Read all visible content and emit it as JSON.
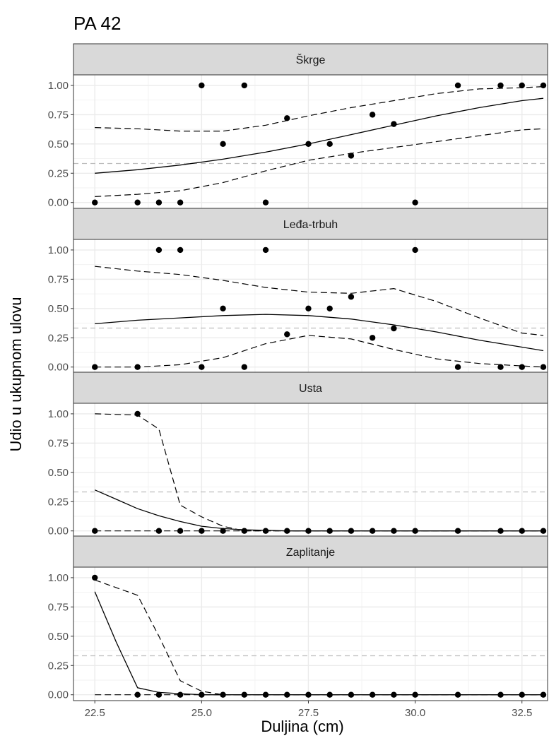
{
  "chart_data": {
    "type": "scatter",
    "title": "PA 42",
    "xlabel": "Duljina (cm)",
    "ylabel": "Udio u ukupnom ulovu",
    "xlim": [
      22.0,
      33.1
    ],
    "ylim": [
      -0.05,
      1.09
    ],
    "x_ticks": [
      22.5,
      25.0,
      27.5,
      30.0,
      32.5
    ],
    "x_tick_labels": [
      "22.5",
      "25.0",
      "27.5",
      "30.0",
      "32.5"
    ],
    "y_ticks": [
      0,
      0.25,
      0.5,
      0.75,
      1.0
    ],
    "y_tick_labels": [
      "0.00",
      "0.25",
      "0.50",
      "0.75",
      "1.00"
    ],
    "reference_line": 0.333,
    "grid": true,
    "panels": [
      {
        "name": "Škrge",
        "points": [
          [
            22.5,
            0
          ],
          [
            23.5,
            0
          ],
          [
            24,
            0
          ],
          [
            24.5,
            0
          ],
          [
            25,
            1
          ],
          [
            25.5,
            0.5
          ],
          [
            26,
            1
          ],
          [
            26.5,
            0
          ],
          [
            27,
            0.72
          ],
          [
            27.5,
            0.5
          ],
          [
            28,
            0.5
          ],
          [
            28.5,
            0.4
          ],
          [
            29,
            0.75
          ],
          [
            29.5,
            0.67
          ],
          [
            30,
            0
          ],
          [
            31,
            1
          ],
          [
            32,
            1
          ],
          [
            32.5,
            1
          ],
          [
            33,
            1
          ]
        ],
        "fit": [
          [
            22.5,
            0.25
          ],
          [
            23.5,
            0.28
          ],
          [
            24.5,
            0.32
          ],
          [
            25.5,
            0.37
          ],
          [
            26.5,
            0.43
          ],
          [
            27.5,
            0.5
          ],
          [
            28.5,
            0.58
          ],
          [
            29.5,
            0.66
          ],
          [
            30.5,
            0.74
          ],
          [
            31.5,
            0.81
          ],
          [
            32.5,
            0.87
          ],
          [
            33,
            0.89
          ]
        ],
        "lower": [
          [
            22.5,
            0.05
          ],
          [
            23.5,
            0.07
          ],
          [
            24.5,
            0.1
          ],
          [
            25.5,
            0.17
          ],
          [
            26.5,
            0.27
          ],
          [
            27.5,
            0.36
          ],
          [
            28.5,
            0.42
          ],
          [
            29.5,
            0.47
          ],
          [
            30.5,
            0.52
          ],
          [
            31.5,
            0.57
          ],
          [
            32.5,
            0.62
          ],
          [
            33,
            0.63
          ]
        ],
        "upper": [
          [
            22.5,
            0.64
          ],
          [
            23.5,
            0.63
          ],
          [
            24.5,
            0.61
          ],
          [
            25.5,
            0.61
          ],
          [
            26.5,
            0.66
          ],
          [
            27.5,
            0.74
          ],
          [
            28.5,
            0.81
          ],
          [
            29.5,
            0.87
          ],
          [
            30.5,
            0.93
          ],
          [
            31.5,
            0.97
          ],
          [
            32.5,
            0.98
          ],
          [
            33,
            0.99
          ]
        ]
      },
      {
        "name": "Leđa-trbuh",
        "points": [
          [
            22.5,
            0
          ],
          [
            23.5,
            0
          ],
          [
            24,
            1
          ],
          [
            24.5,
            1
          ],
          [
            25,
            0
          ],
          [
            25.5,
            0.5
          ],
          [
            26,
            0
          ],
          [
            26.5,
            1
          ],
          [
            27,
            0.28
          ],
          [
            27.5,
            0.5
          ],
          [
            28,
            0.5
          ],
          [
            28.5,
            0.6
          ],
          [
            29,
            0.25
          ],
          [
            29.5,
            0.33
          ],
          [
            30,
            1
          ],
          [
            31,
            0
          ],
          [
            32,
            0
          ],
          [
            32.5,
            0
          ],
          [
            33,
            0
          ]
        ],
        "fit": [
          [
            22.5,
            0.37
          ],
          [
            23.5,
            0.4
          ],
          [
            24.5,
            0.42
          ],
          [
            25.5,
            0.44
          ],
          [
            26.5,
            0.45
          ],
          [
            27.5,
            0.44
          ],
          [
            28.5,
            0.41
          ],
          [
            29.5,
            0.36
          ],
          [
            30.5,
            0.3
          ],
          [
            31.5,
            0.23
          ],
          [
            32.5,
            0.17
          ],
          [
            33,
            0.14
          ]
        ],
        "lower": [
          [
            22.5,
            0
          ],
          [
            23.5,
            0
          ],
          [
            24.5,
            0.02
          ],
          [
            25.5,
            0.08
          ],
          [
            26.5,
            0.2
          ],
          [
            27.5,
            0.27
          ],
          [
            28.5,
            0.24
          ],
          [
            29.5,
            0.15
          ],
          [
            30.5,
            0.07
          ],
          [
            31.5,
            0.03
          ],
          [
            32.5,
            0.01
          ],
          [
            33,
            0
          ]
        ],
        "upper": [
          [
            22.5,
            0.86
          ],
          [
            23.5,
            0.82
          ],
          [
            24.5,
            0.79
          ],
          [
            25.5,
            0.74
          ],
          [
            26.5,
            0.68
          ],
          [
            27.5,
            0.64
          ],
          [
            28.5,
            0.63
          ],
          [
            29.5,
            0.67
          ],
          [
            30.5,
            0.56
          ],
          [
            31.5,
            0.42
          ],
          [
            32.5,
            0.29
          ],
          [
            33,
            0.27
          ]
        ]
      },
      {
        "name": "Usta",
        "points": [
          [
            22.5,
            0
          ],
          [
            23.5,
            1
          ],
          [
            24,
            0
          ],
          [
            24.5,
            0
          ],
          [
            25,
            0
          ],
          [
            25.5,
            0
          ],
          [
            26,
            0
          ],
          [
            26.5,
            0
          ],
          [
            27,
            0
          ],
          [
            27.5,
            0
          ],
          [
            28,
            0
          ],
          [
            28.5,
            0
          ],
          [
            29,
            0
          ],
          [
            29.5,
            0
          ],
          [
            30,
            0
          ],
          [
            31,
            0
          ],
          [
            32,
            0
          ],
          [
            32.5,
            0
          ],
          [
            33,
            0
          ]
        ],
        "fit": [
          [
            22.5,
            0.35
          ],
          [
            23,
            0.27
          ],
          [
            23.5,
            0.19
          ],
          [
            24,
            0.13
          ],
          [
            24.5,
            0.08
          ],
          [
            25,
            0.04
          ],
          [
            25.5,
            0.02
          ],
          [
            26,
            0.01
          ],
          [
            27,
            0
          ],
          [
            33,
            0
          ]
        ],
        "lower": [
          [
            22.5,
            0
          ],
          [
            33,
            0
          ]
        ],
        "upper": [
          [
            22.5,
            1
          ],
          [
            23.5,
            0.99
          ],
          [
            24,
            0.87
          ],
          [
            24.5,
            0.22
          ],
          [
            25,
            0.12
          ],
          [
            25.5,
            0.04
          ],
          [
            26,
            0
          ],
          [
            33,
            0
          ]
        ]
      },
      {
        "name": "Zaplitanje",
        "points": [
          [
            22.5,
            1
          ],
          [
            23.5,
            0
          ],
          [
            24,
            0
          ],
          [
            24.5,
            0
          ],
          [
            25,
            0
          ],
          [
            25.5,
            0
          ],
          [
            26,
            0
          ],
          [
            26.5,
            0
          ],
          [
            27,
            0
          ],
          [
            27.5,
            0
          ],
          [
            28,
            0
          ],
          [
            28.5,
            0
          ],
          [
            29,
            0
          ],
          [
            29.5,
            0
          ],
          [
            30,
            0
          ],
          [
            31,
            0
          ],
          [
            32,
            0
          ],
          [
            32.5,
            0
          ],
          [
            33,
            0
          ]
        ],
        "fit": [
          [
            22.5,
            0.88
          ],
          [
            23,
            0.45
          ],
          [
            23.5,
            0.06
          ],
          [
            24,
            0.02
          ],
          [
            24.5,
            0.01
          ],
          [
            25,
            0
          ],
          [
            33,
            0
          ]
        ],
        "lower": [
          [
            22.5,
            0
          ],
          [
            33,
            0
          ]
        ],
        "upper": [
          [
            22.5,
            0.98
          ],
          [
            23.5,
            0.85
          ],
          [
            24,
            0.5
          ],
          [
            24.5,
            0.12
          ],
          [
            25,
            0.03
          ],
          [
            25.5,
            0
          ],
          [
            33,
            0
          ]
        ]
      }
    ]
  }
}
